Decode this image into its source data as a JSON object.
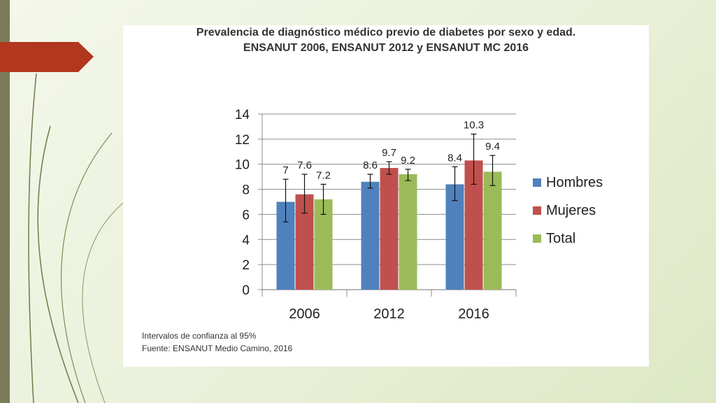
{
  "slide": {
    "accent_color": "#b2371f",
    "bar_color": "#7d7a5a"
  },
  "figure": {
    "title_line1": "Prevalencia de diagnóstico médico previo de diabetes por sexo y edad.",
    "title_line2": "ENSANUT 2006, ENSANUT 2012 y ENSANUT MC 2016",
    "note": "Intervalos de confianza al 95%",
    "source": "Fuente: ENSANUT Medio Camino, 2016"
  },
  "chart_data": {
    "type": "bar",
    "categories": [
      "2006",
      "2012",
      "2016"
    ],
    "series": [
      {
        "name": "Hombres",
        "color": "#4f81bd",
        "values": [
          7,
          8.6,
          8.4
        ],
        "ci_low": [
          5.4,
          8.1,
          7.1
        ],
        "ci_high": [
          8.8,
          9.2,
          9.8
        ]
      },
      {
        "name": "Mujeres",
        "color": "#c0504d",
        "values": [
          7.6,
          9.7,
          10.3
        ],
        "ci_low": [
          6.1,
          9.2,
          8.4
        ],
        "ci_high": [
          9.2,
          10.2,
          12.4
        ]
      },
      {
        "name": "Total",
        "color": "#9bbb59",
        "values": [
          7.2,
          9.2,
          9.4
        ],
        "ci_low": [
          6.0,
          8.7,
          8.3
        ],
        "ci_high": [
          8.4,
          9.6,
          10.7
        ]
      }
    ],
    "value_labels": [
      [
        "7",
        "8.6",
        "8.4"
      ],
      [
        "7.6",
        "9.7",
        "10.3"
      ],
      [
        "7.2",
        "9.2",
        "9.4"
      ]
    ],
    "y_ticks": [
      "0",
      "2",
      "4",
      "6",
      "8",
      "10",
      "12",
      "14"
    ],
    "ylim": [
      0,
      14
    ],
    "grid": true,
    "legend_position": "right"
  }
}
